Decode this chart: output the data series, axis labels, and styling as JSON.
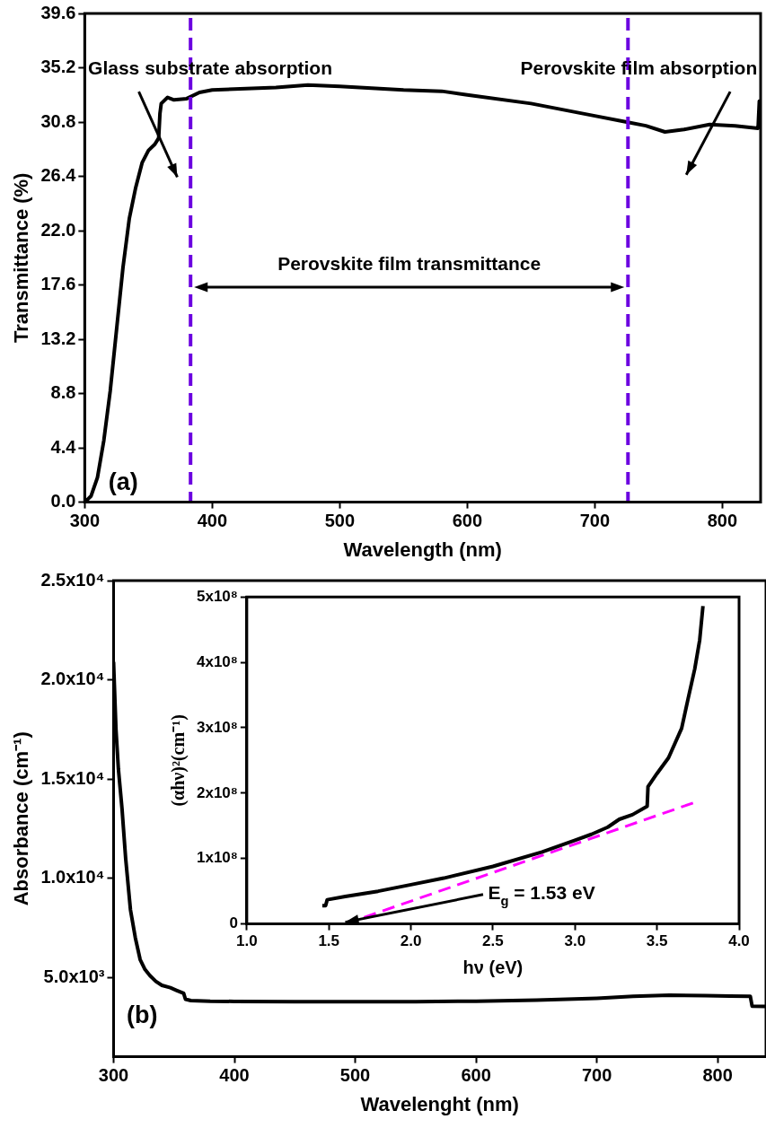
{
  "chart_data": [
    {
      "type": "line",
      "xlabel": "Wavelength (nm)",
      "ylabel": "Transmittance (%)",
      "x": [
        300,
        305,
        310,
        315,
        320,
        325,
        330,
        335,
        340,
        345,
        350,
        355,
        358,
        359,
        360,
        365,
        370,
        380,
        390,
        400,
        450,
        475,
        500,
        550,
        580,
        600,
        650,
        700,
        725,
        740,
        755,
        770,
        790,
        810,
        828,
        829,
        830
      ],
      "values": [
        0,
        0.5,
        2,
        5,
        9,
        14,
        19,
        23,
        25.5,
        27.5,
        28.5,
        29,
        29.5,
        31.5,
        32.3,
        32.8,
        32.6,
        32.7,
        33.2,
        33.4,
        33.6,
        33.8,
        33.7,
        33.4,
        33.3,
        33.0,
        32.3,
        31.3,
        30.8,
        30.5,
        30.0,
        30.2,
        30.6,
        30.5,
        30.3,
        32.5,
        32.5
      ],
      "color": "#000000",
      "xlim": [
        300,
        830
      ],
      "xticks": [
        300,
        400,
        500,
        600,
        700,
        800
      ],
      "ylim": [
        0,
        39.6
      ],
      "yticks": [
        {
          "value": 0,
          "label": "0.0"
        },
        4.4,
        8.8,
        13.2,
        17.6,
        {
          "value": 22,
          "label": "22.0"
        },
        26.4,
        30.8,
        35.2,
        39.6
      ],
      "ref_lines": [
        {
          "axis": "x",
          "value": 383,
          "color": "#6b00e0",
          "line_style": "dashed"
        },
        {
          "axis": "x",
          "value": 726,
          "color": "#6b00e0",
          "line_style": "dashed"
        }
      ],
      "annotations": [
        "Glass substrate absorption",
        "Perovskite film absorption",
        "Perovskite film transmittance",
        "(a)"
      ],
      "grid": false,
      "legend": false
    },
    {
      "type": "line",
      "xlabel": "Wavelenght (nm)",
      "ylabel": "Absorbance (cm⁻¹)",
      "x": [
        300,
        302,
        304,
        307,
        310,
        314,
        318,
        322,
        326,
        330,
        335,
        340,
        347,
        352,
        358,
        359.5,
        364,
        380,
        400,
        450,
        500,
        550,
        600,
        650,
        700,
        730,
        760,
        790,
        810,
        827,
        828.5,
        840
      ],
      "values": [
        20900,
        17500,
        15500,
        13500,
        11000,
        8400,
        7000,
        5900,
        5400,
        5100,
        4800,
        4600,
        4480,
        4350,
        4200,
        3900,
        3830,
        3800,
        3790,
        3780,
        3770,
        3780,
        3800,
        3850,
        3950,
        4050,
        4100,
        4080,
        4060,
        4050,
        3550,
        3540
      ],
      "color": "#000000",
      "xlim": [
        300,
        840
      ],
      "xticks": [
        300,
        400,
        500,
        600,
        700,
        800
      ],
      "ylim": [
        1000,
        25000
      ],
      "yticks": [
        {
          "value": 5000,
          "label": "5.0x10³"
        },
        {
          "value": 10000,
          "label": "1.0x10⁴"
        },
        {
          "value": 15000,
          "label": "1.5x10⁴"
        },
        {
          "value": 20000,
          "label": "2.0x10⁴"
        },
        {
          "value": 25000,
          "label": "2.5x10⁴"
        }
      ],
      "annotations": [
        "(b)"
      ],
      "grid": false,
      "legend": false
    },
    {
      "type": "line",
      "xlabel": "hν (eV)",
      "ylabel": "(αhν)²(cm⁻¹)",
      "series": [
        {
          "color": "#000000",
          "x": [
            1.46,
            1.48,
            1.49,
            1.6,
            1.8,
            2.0,
            2.2,
            2.5,
            2.8,
            3.0,
            3.1,
            3.2,
            3.27,
            3.35,
            3.44,
            3.445,
            3.5,
            3.57,
            3.65,
            3.69,
            3.73,
            3.76,
            3.78
          ],
          "values": [
            28000000,
            28000000,
            37000000,
            42000000,
            50000000,
            60000000,
            70000000,
            88000000,
            110000000,
            128000000,
            137000000,
            148000000,
            160000000,
            167000000,
            180000000,
            210000000,
            230000000,
            254000000,
            299000000,
            345000000,
            390000000,
            434000000,
            486000000
          ]
        },
        {
          "type": "line",
          "color": "#ff00ff",
          "line_style": "dashed",
          "x": [
            1.6,
            3.72
          ],
          "values": [
            0,
            185000000
          ]
        }
      ],
      "xlim": [
        1,
        4
      ],
      "xticks": [
        {
          "value": 1,
          "label": "1.0"
        },
        1.5,
        {
          "value": 2,
          "label": "2.0"
        },
        2.5,
        {
          "value": 3,
          "label": "3.0"
        },
        3.5,
        {
          "value": 4,
          "label": "4.0"
        }
      ],
      "ylim": [
        0,
        500000000
      ],
      "yticks": [
        0,
        {
          "value": 100000000,
          "label": "1x10⁸"
        },
        {
          "value": 200000000,
          "label": "2x10⁸"
        },
        {
          "value": 300000000,
          "label": "3x10⁸"
        },
        {
          "value": 400000000,
          "label": "4x10⁸"
        },
        {
          "value": 500000000,
          "label": "5x10⁸"
        }
      ],
      "annotations": [
        {
          "text": "E$_{g}$ = 1.53 eV",
          "x": 1.6,
          "y": 0
        }
      ],
      "grid": false,
      "legend": false
    }
  ]
}
